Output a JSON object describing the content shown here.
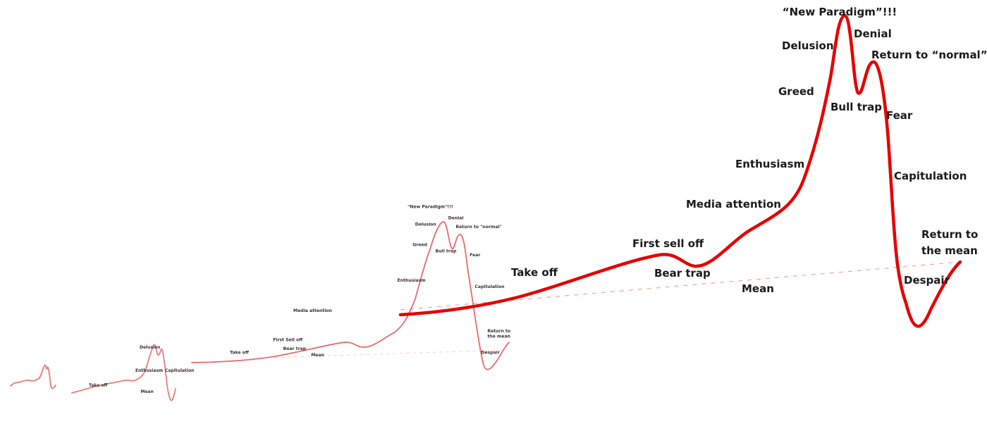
{
  "main_labels": {
    "new_paradigm": "“New Paradigm”!!!",
    "denial": "Denial",
    "delusion": "Delusion",
    "return_to_normal": "Return to “normal”",
    "greed": "Greed",
    "bull_trap": "Bull trap",
    "fear": "Fear",
    "enthusiasm": "Enthusiasm",
    "capitulation": "Capitulation",
    "media_attention": "Media attention",
    "return_to_the_mean_1": "Return to",
    "return_to_the_mean_2": "the mean",
    "first_sell_off": "First sell off",
    "take_off": "Take off",
    "bear_trap": "Bear trap",
    "mean": "Mean",
    "despair": "Despair"
  },
  "copy3_labels": {
    "new_paradigm": "\"New Paradigm\"!!!",
    "delusion": "Delusion",
    "denial": "Denial",
    "return_to_normal": "Return to \"normal\"",
    "greed": "Greed",
    "bull_trap": "Bull trap",
    "fear": "Fear",
    "enthusiasm": "Enthusiasm",
    "capitulation": "Capitulation",
    "media_attention": "Media attention",
    "return_to_the_mean_1": "Return to",
    "return_to_the_mean_2": "the mean",
    "first_sell_off": "First Sell off",
    "take_off": "Take off",
    "bear_trap": "Bear trap",
    "mean": "Mean",
    "despair": "Despair"
  },
  "colors": {
    "main_curve": "#e60000",
    "small_curves": "#e85a5a",
    "mean_line": "#f06060",
    "label_text": "#1a1a1a",
    "background": "#ffffff"
  }
}
